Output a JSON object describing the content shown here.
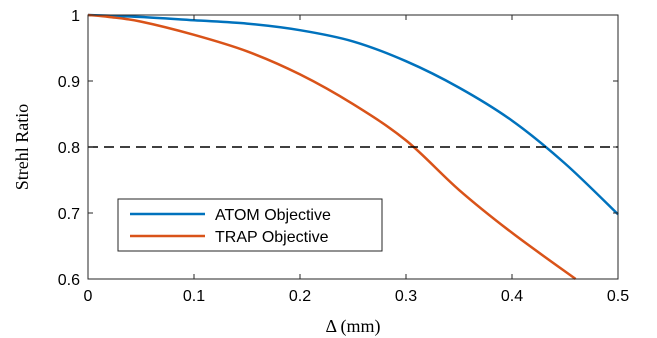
{
  "chart_data": {
    "type": "line",
    "title": "",
    "xlabel": "Δ (mm)",
    "ylabel": "Strehl Ratio",
    "xlim": [
      0,
      0.5
    ],
    "ylim": [
      0.6,
      1.0
    ],
    "xticks": [
      "0",
      "0.1",
      "0.2",
      "0.3",
      "0.4",
      "0.5"
    ],
    "yticks": [
      "0.6",
      "0.7",
      "0.8",
      "0.9",
      "1"
    ],
    "grid": false,
    "legend_position": "bottom-left",
    "reference_line": {
      "y": 0.8,
      "style": "dashed",
      "color": "#000000"
    },
    "series": [
      {
        "name": "ATOM Objective",
        "color": "#0072BD",
        "x": [
          0,
          0.05,
          0.1,
          0.15,
          0.2,
          0.25,
          0.3,
          0.35,
          0.4,
          0.45,
          0.5
        ],
        "y": [
          1.0,
          0.997,
          0.992,
          0.987,
          0.977,
          0.96,
          0.93,
          0.89,
          0.84,
          0.775,
          0.698
        ]
      },
      {
        "name": "TRAP Objective",
        "color": "#D95319",
        "x": [
          0,
          0.02,
          0.05,
          0.1,
          0.15,
          0.2,
          0.25,
          0.3,
          0.35,
          0.4,
          0.46
        ],
        "y": [
          1.0,
          0.997,
          0.99,
          0.97,
          0.945,
          0.91,
          0.865,
          0.81,
          0.735,
          0.67,
          0.6
        ]
      }
    ]
  }
}
